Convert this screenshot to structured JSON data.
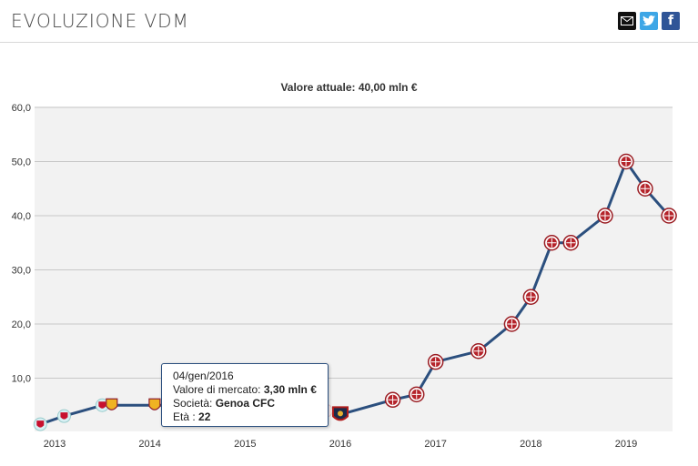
{
  "header": {
    "title": "EVOLUZIONE VDM",
    "share_mail_icon": "mail-icon",
    "share_twitter_icon": "twitter-icon",
    "share_facebook_icon": "facebook-icon"
  },
  "chart_data": {
    "type": "line",
    "title": "Valore attuale: 40,00 mln €",
    "xlabel": "",
    "ylabel": "",
    "x_ticks": [
      "2013",
      "2014",
      "2015",
      "2016",
      "2017",
      "2018",
      "2019"
    ],
    "y_ticks": [
      "10,0",
      "20,0",
      "30,0",
      "40,0",
      "50,0",
      "60,0"
    ],
    "ylim": [
      0,
      60
    ],
    "xlim": [
      2012.85,
      2019.5
    ],
    "grid": true,
    "series_color": "#2b4f7e",
    "points": [
      {
        "x": 2012.85,
        "y": 1.5,
        "club": "Liverpool"
      },
      {
        "x": 2013.1,
        "y": 3.0,
        "club": "Liverpool"
      },
      {
        "x": 2013.5,
        "y": 5.0,
        "club": "Liverpool"
      },
      {
        "x": 2013.6,
        "y": 5.0,
        "club": "Roma"
      },
      {
        "x": 2014.05,
        "y": 5.0,
        "club": "Roma"
      },
      {
        "x": 2015.1,
        "y": 5.0,
        "club": "Genoa CFC"
      },
      {
        "x": 2015.5,
        "y": 5.0,
        "club": "Genoa CFC"
      },
      {
        "x": 2015.85,
        "y": 4.0,
        "club": "Genoa CFC"
      },
      {
        "x": 2016.0,
        "y": 3.3,
        "club": "Genoa CFC"
      },
      {
        "x": 2016.55,
        "y": 6.0,
        "club": "Milan"
      },
      {
        "x": 2016.8,
        "y": 7.0,
        "club": "Milan"
      },
      {
        "x": 2017.0,
        "y": 13.0,
        "club": "Milan"
      },
      {
        "x": 2017.45,
        "y": 15.0,
        "club": "Milan"
      },
      {
        "x": 2017.8,
        "y": 20.0,
        "club": "Milan"
      },
      {
        "x": 2018.0,
        "y": 25.0,
        "club": "Milan"
      },
      {
        "x": 2018.22,
        "y": 35.0,
        "club": "Milan"
      },
      {
        "x": 2018.42,
        "y": 35.0,
        "club": "Milan"
      },
      {
        "x": 2018.78,
        "y": 40.0,
        "club": "Milan"
      },
      {
        "x": 2019.0,
        "y": 50.0,
        "club": "Milan"
      },
      {
        "x": 2019.2,
        "y": 45.0,
        "club": "Milan"
      },
      {
        "x": 2019.45,
        "y": 40.0,
        "club": "Milan"
      }
    ]
  },
  "tooltip": {
    "date": "04/gen/2016",
    "value_label": "Valore di mercato:",
    "value": "3,30 mln €",
    "club_label": "Società:",
    "club": "Genoa CFC",
    "age_label": "Età :",
    "age": "22"
  }
}
